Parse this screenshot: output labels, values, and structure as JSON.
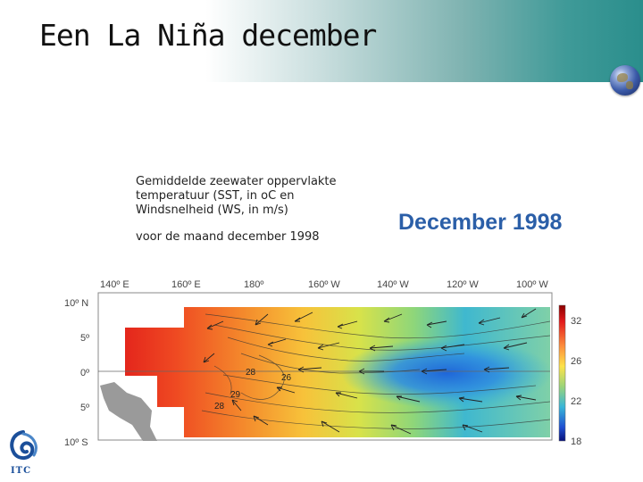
{
  "slide": {
    "title": "Een La Niña december",
    "caption_line1": "Gemiddelde zeewater oppervlakte temperatuur (SST, in oC en Windsnelheid (WS, in m/s)",
    "caption_line2": "voor de maand december 1998",
    "figure_title": "December 1998"
  },
  "map": {
    "lon_labels": [
      "140º E",
      "160º E",
      "180º",
      "160º W",
      "140º W",
      "120º W",
      "100º W"
    ],
    "lat_labels": [
      "10º N",
      "5º",
      "0º",
      "5º",
      "10º S"
    ],
    "contour_labels": [
      "26",
      "28",
      "29",
      "28"
    ],
    "colorbar_ticks": [
      "32",
      "26",
      "22",
      "18"
    ]
  },
  "logo": {
    "text": "ITC"
  },
  "colors": {
    "title_blue": "#2b5fa8",
    "header_teal": "#2a8e8c"
  }
}
